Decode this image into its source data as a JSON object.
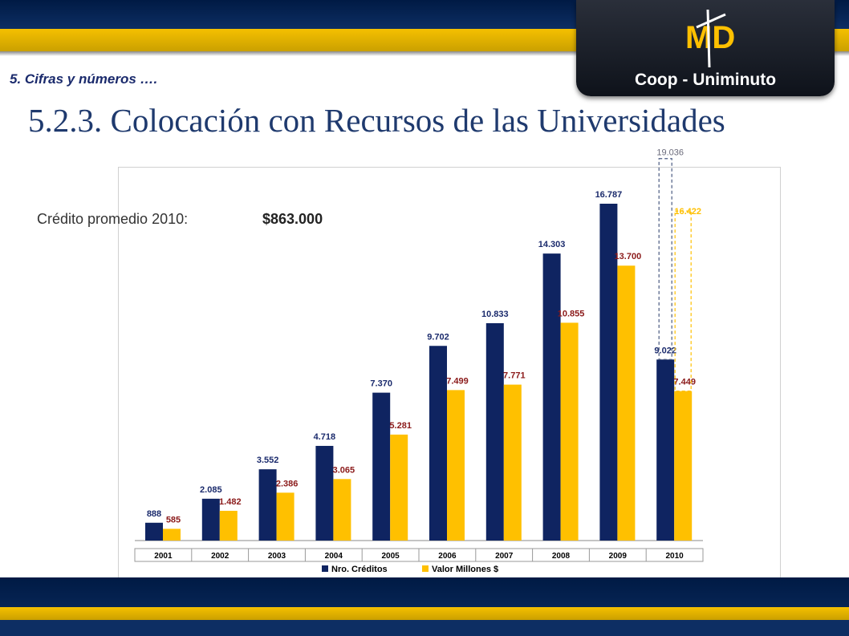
{
  "header": {
    "section": "5. Cifras y números ….",
    "title": "5.2.3. Colocación con Recursos de las Universidades",
    "logo_text": "Coop - Uniminuto",
    "logo_mark": "MD"
  },
  "note": {
    "label": "Crédito promedio 2010:",
    "value": "$863.000"
  },
  "colors": {
    "navy": "#0f2461",
    "gold": "#ffc000",
    "label_navy": "#1a2a6c",
    "label_red": "#8b1a1a"
  },
  "chart_data": {
    "type": "bar",
    "categories": [
      "2001",
      "2002",
      "2003",
      "2004",
      "2005",
      "2006",
      "2007",
      "2008",
      "2009",
      "2010"
    ],
    "series": [
      {
        "name": "Nro. Créditos",
        "values": [
          888,
          2085,
          3552,
          4718,
          7370,
          9702,
          10833,
          14303,
          16787,
          9022
        ],
        "labels": [
          "888",
          "2.085",
          "3.552",
          "4.718",
          "7.370",
          "9.702",
          "10.833",
          "14.303",
          "16.787",
          "9.022"
        ]
      },
      {
        "name": "Valor Millones $",
        "values": [
          585,
          1482,
          2386,
          3065,
          5281,
          7499,
          7771,
          10855,
          13700,
          7449
        ],
        "labels": [
          "585",
          "1.482",
          "2.386",
          "3.065",
          "5.281",
          "7.499",
          "7.771",
          "10.855",
          "13.700",
          "7.449"
        ]
      }
    ],
    "projection_2010": [
      {
        "value": 19036,
        "label": "19.036"
      },
      {
        "value": 16422,
        "label": "16.422"
      }
    ],
    "legend_position": "bottom",
    "ylim": [
      0,
      19500
    ]
  }
}
